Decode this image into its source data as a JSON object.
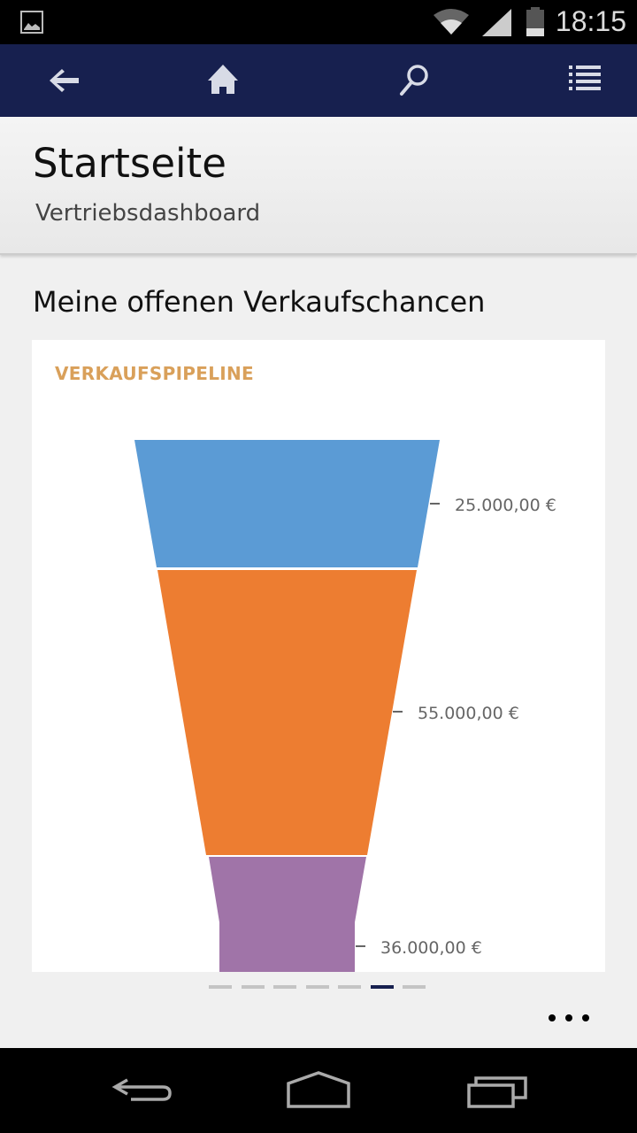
{
  "status_bar": {
    "time": "18:15",
    "icons": [
      "image-icon",
      "wifi-icon",
      "signal-icon",
      "battery-icon"
    ]
  },
  "app_bar": {
    "icons": [
      "back-arrow-icon",
      "home-icon",
      "search-icon",
      "list-icon"
    ]
  },
  "header": {
    "title": "Startseite",
    "subtitle": "Vertriebsdashboard"
  },
  "section_title": "Meine offenen Verkaufschancen",
  "card": {
    "title": "VERKAUFSPIPELINE"
  },
  "chart_data": {
    "type": "funnel",
    "title": "VERKAUFSPIPELINE",
    "stages": [
      {
        "value": 25000,
        "label": "25.000,00 €",
        "color": "#5b9bd5"
      },
      {
        "value": 55000,
        "label": "55.000,00 €",
        "color": "#ed7d31"
      },
      {
        "value": 36000,
        "label": "36.000,00 €",
        "color": "#a074a8"
      }
    ]
  },
  "pager": {
    "count": 7,
    "active_index": 5,
    "active_color": "#17204f"
  },
  "colors": {
    "app_bar": "#17204f",
    "accent_title": "#d9a05a"
  }
}
